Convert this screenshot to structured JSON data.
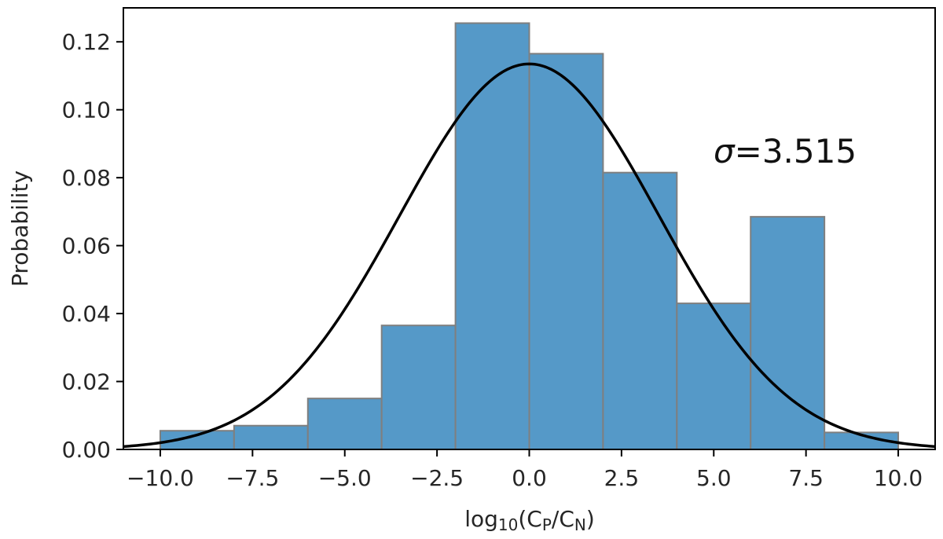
{
  "chart_data": {
    "type": "bar",
    "subtype": "histogram",
    "xlabel": "log10(CP/CN)",
    "xlabel_parts": {
      "pre": "log",
      "sub1": "10",
      "mid": "(C",
      "sub2": "P",
      "slash": "/C",
      "sub3": "N",
      "post": ")"
    },
    "ylabel": "Probability",
    "xlim": [
      -11,
      11
    ],
    "ylim": [
      0,
      0.13
    ],
    "xticks": [
      -10.0,
      -7.5,
      -5.0,
      -2.5,
      0.0,
      2.5,
      5.0,
      7.5,
      10.0
    ],
    "xtick_labels": [
      "−10.0",
      "−7.5",
      "−5.0",
      "−2.5",
      "0.0",
      "2.5",
      "5.0",
      "7.5",
      "10.0"
    ],
    "yticks": [
      0.0,
      0.02,
      0.04,
      0.06,
      0.08,
      0.1,
      0.12
    ],
    "ytick_labels": [
      "0.00",
      "0.02",
      "0.04",
      "0.06",
      "0.08",
      "0.10",
      "0.12"
    ],
    "bin_edges": [
      -10,
      -8,
      -6,
      -4,
      -2,
      0,
      2,
      4,
      6,
      8,
      10
    ],
    "values": [
      0.0055,
      0.007,
      0.015,
      0.0365,
      0.1255,
      0.1165,
      0.0815,
      0.043,
      0.0685,
      0.005
    ],
    "fit": {
      "type": "normal",
      "mean": 0.0,
      "sigma": 3.515
    },
    "annotation": {
      "symbol": "σ",
      "text": "=3.515"
    },
    "grid": false,
    "colors": {
      "bar_fill": "#5599c8",
      "bar_edge": "#7f7f7f",
      "curve": "#000000"
    }
  }
}
